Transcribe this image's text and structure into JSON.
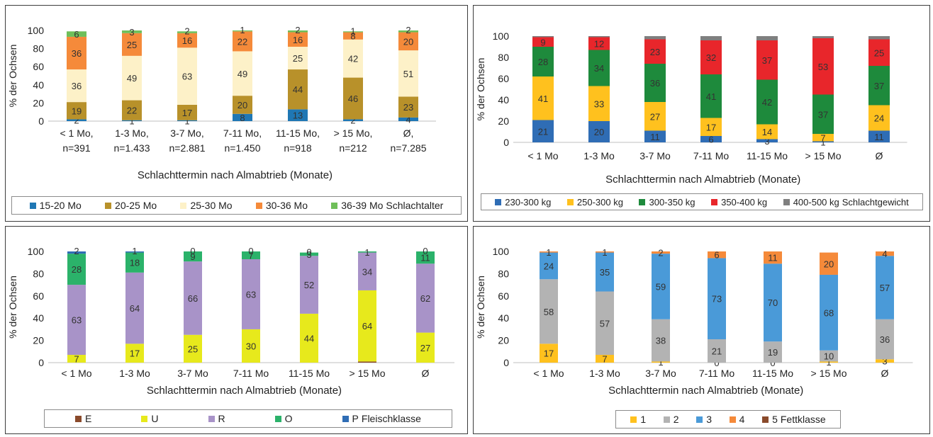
{
  "chart_data": [
    {
      "type": "bar",
      "stacked": true,
      "xlabel": "Schlachttermin nach Almabtrieb (Monate)",
      "ylabel": "% der Ochsen",
      "ylim": [
        0,
        100
      ],
      "yticks": [
        "0",
        "20",
        "40",
        "60",
        "80",
        "100"
      ],
      "categories": [
        [
          "< 1 Mo,",
          "n=391"
        ],
        [
          "1-3 Mo,",
          "n=1.433"
        ],
        [
          "3-7 Mo,",
          "n=2.881"
        ],
        [
          "7-11 Mo,",
          "n=1.450"
        ],
        [
          "11-15 Mo,",
          "n=918"
        ],
        [
          "> 15 Mo,",
          "n=212"
        ],
        [
          "Ø,",
          "n=7.285"
        ]
      ],
      "legend_position": "bottom",
      "series": [
        {
          "name": "15-20 Mo",
          "color": "#1f77b4",
          "values": [
            2,
            1,
            1,
            8,
            13,
            2,
            4
          ],
          "labels": [
            "2",
            "1",
            "1",
            "8",
            "13",
            "2",
            "4"
          ]
        },
        {
          "name": "20-25 Mo",
          "color": "#b8912a",
          "values": [
            19,
            22,
            17,
            20,
            44,
            46,
            23
          ],
          "labels": [
            "19",
            "22",
            "17",
            "20",
            "44",
            "46",
            "23"
          ]
        },
        {
          "name": "25-30 Mo",
          "color": "#fdf1c8",
          "values": [
            36,
            49,
            63,
            49,
            25,
            42,
            51
          ],
          "labels": [
            "36",
            "49",
            "63",
            "49",
            "25",
            "42",
            "51"
          ]
        },
        {
          "name": "30-36 Mo",
          "color": "#f58a3a",
          "values": [
            36,
            25,
            16,
            22,
            16,
            8,
            20
          ],
          "labels": [
            "36",
            "25",
            "16",
            "22",
            "16",
            "8",
            "20"
          ]
        },
        {
          "name": "36-39 Mo",
          "color": "#6fbf5a",
          "values": [
            6,
            3,
            2,
            1,
            2,
            1,
            2
          ],
          "labels": [
            "6",
            "3",
            "2",
            "1",
            "2",
            "1",
            "2"
          ]
        }
      ],
      "legend_suffix": "Schlachtalter"
    },
    {
      "type": "bar",
      "stacked": true,
      "xlabel": "Schlachttermin nach Almabtrieb (Monate)",
      "ylabel": "% der Ochsen",
      "ylim": [
        0,
        100
      ],
      "yticks": [
        "0",
        "20",
        "40",
        "60",
        "80",
        "100"
      ],
      "categories": [
        [
          "< 1 Mo"
        ],
        [
          "1-3 Mo"
        ],
        [
          "3-7 Mo"
        ],
        [
          "7-11 Mo"
        ],
        [
          "11-15 Mo"
        ],
        [
          "> 15 Mo"
        ],
        [
          "Ø"
        ]
      ],
      "legend_position": "bottom",
      "series": [
        {
          "name": "230-300 kg",
          "color": "#2f6db5",
          "values": [
            21,
            20,
            11,
            6,
            3,
            1,
            11
          ],
          "labels": [
            "21",
            "20",
            "11",
            "6",
            "3",
            "1",
            "11"
          ]
        },
        {
          "name": "250-300 kg",
          "color": "#ffc11e",
          "values": [
            41,
            33,
            27,
            17,
            14,
            7,
            24
          ],
          "labels": [
            "41",
            "33",
            "27",
            "17",
            "14",
            "7",
            "24"
          ]
        },
        {
          "name": "300-350 kg",
          "color": "#1e8a3c",
          "values": [
            28,
            34,
            36,
            41,
            42,
            37,
            37
          ],
          "labels": [
            "28",
            "34",
            "36",
            "41",
            "42",
            "37",
            "37"
          ]
        },
        {
          "name": "350-400 kg",
          "color": "#e8262b",
          "values": [
            9,
            12,
            23,
            32,
            37,
            53,
            25
          ],
          "labels": [
            "9",
            "12",
            "23",
            "32",
            "37",
            "53",
            "25"
          ]
        },
        {
          "name": "400-500 kg",
          "color": "#7f7f7f",
          "values": [
            1,
            1,
            3,
            4,
            4,
            2,
            3
          ],
          "labels": [
            "",
            "",
            "",
            "",
            "",
            "",
            ""
          ]
        }
      ],
      "legend_suffix": "Schlachtgewicht"
    },
    {
      "type": "bar",
      "stacked": true,
      "xlabel": "Schlachttermin nach Almabtrieb (Monate)",
      "ylabel": "% der Ochsen",
      "ylim": [
        0,
        100
      ],
      "yticks": [
        "0",
        "20",
        "40",
        "60",
        "80",
        "100"
      ],
      "categories": [
        [
          "< 1 Mo"
        ],
        [
          "1-3 Mo"
        ],
        [
          "3-7 Mo"
        ],
        [
          "7-11 Mo"
        ],
        [
          "11-15 Mo"
        ],
        [
          "> 15 Mo"
        ],
        [
          "Ø"
        ]
      ],
      "legend_position": "bottom",
      "series": [
        {
          "name": "E",
          "color": "#8a4a2b",
          "values": [
            0,
            0,
            0,
            0,
            0,
            1,
            0
          ],
          "labels": [
            "",
            "",
            "",
            "",
            "",
            "",
            ""
          ]
        },
        {
          "name": "U",
          "color": "#e7e91c",
          "values": [
            7,
            17,
            25,
            30,
            44,
            64,
            27
          ],
          "labels": [
            "7",
            "17",
            "25",
            "30",
            "44",
            "64",
            "27"
          ]
        },
        {
          "name": "R",
          "color": "#a893c8",
          "values": [
            63,
            64,
            66,
            63,
            52,
            34,
            62
          ],
          "labels": [
            "63",
            "64",
            "66",
            "63",
            "52",
            "34",
            "62"
          ]
        },
        {
          "name": "O",
          "color": "#2bb26a",
          "values": [
            28,
            18,
            9,
            7,
            3,
            1,
            11
          ],
          "labels": [
            "28",
            "18",
            "9",
            "7",
            "3",
            "1",
            "11"
          ]
        },
        {
          "name": "P",
          "color": "#2f6db5",
          "values": [
            2,
            1,
            0,
            0,
            0,
            0,
            0
          ],
          "labels": [
            "2",
            "1",
            "0",
            "0",
            "0",
            "",
            "0"
          ]
        }
      ],
      "legend_suffix": "Fleischklasse"
    },
    {
      "type": "bar",
      "stacked": true,
      "xlabel": "Schlachttermin nach Almabtrieb (Monate)",
      "ylabel": "% der Ochsen",
      "ylim": [
        0,
        100
      ],
      "yticks": [
        "0",
        "20",
        "40",
        "60",
        "80",
        "100"
      ],
      "categories": [
        [
          "< 1 Mo"
        ],
        [
          "1-3 Mo"
        ],
        [
          "3-7 Mo"
        ],
        [
          "7-11 Mo"
        ],
        [
          "11-15 Mo"
        ],
        [
          "> 15 Mo"
        ],
        [
          "Ø"
        ]
      ],
      "legend_position": "bottom",
      "series": [
        {
          "name": "1",
          "color": "#ffc11e",
          "values": [
            17,
            7,
            1,
            0,
            0,
            1,
            3
          ],
          "labels": [
            "17",
            "7",
            "1",
            "0",
            "0",
            "1",
            "3"
          ]
        },
        {
          "name": "2",
          "color": "#b3b3b3",
          "values": [
            58,
            57,
            38,
            21,
            19,
            10,
            36
          ],
          "labels": [
            "58",
            "57",
            "38",
            "21",
            "19",
            "10",
            "36"
          ]
        },
        {
          "name": "3",
          "color": "#4a9ad8",
          "values": [
            24,
            35,
            59,
            73,
            70,
            68,
            57
          ],
          "labels": [
            "24",
            "35",
            "59",
            "73",
            "70",
            "68",
            "57"
          ]
        },
        {
          "name": "4",
          "color": "#f58a3a",
          "values": [
            1,
            1,
            2,
            6,
            11,
            20,
            4
          ],
          "labels": [
            "1",
            "1",
            "2",
            "6",
            "11",
            "20",
            "4"
          ]
        },
        {
          "name": "5",
          "color": "#8a4a2b",
          "values": [
            0,
            0,
            0,
            0,
            0,
            0,
            0
          ],
          "labels": [
            "",
            "",
            "",
            "",
            "",
            "",
            ""
          ]
        }
      ],
      "legend_suffix": "Fettklasse"
    }
  ]
}
